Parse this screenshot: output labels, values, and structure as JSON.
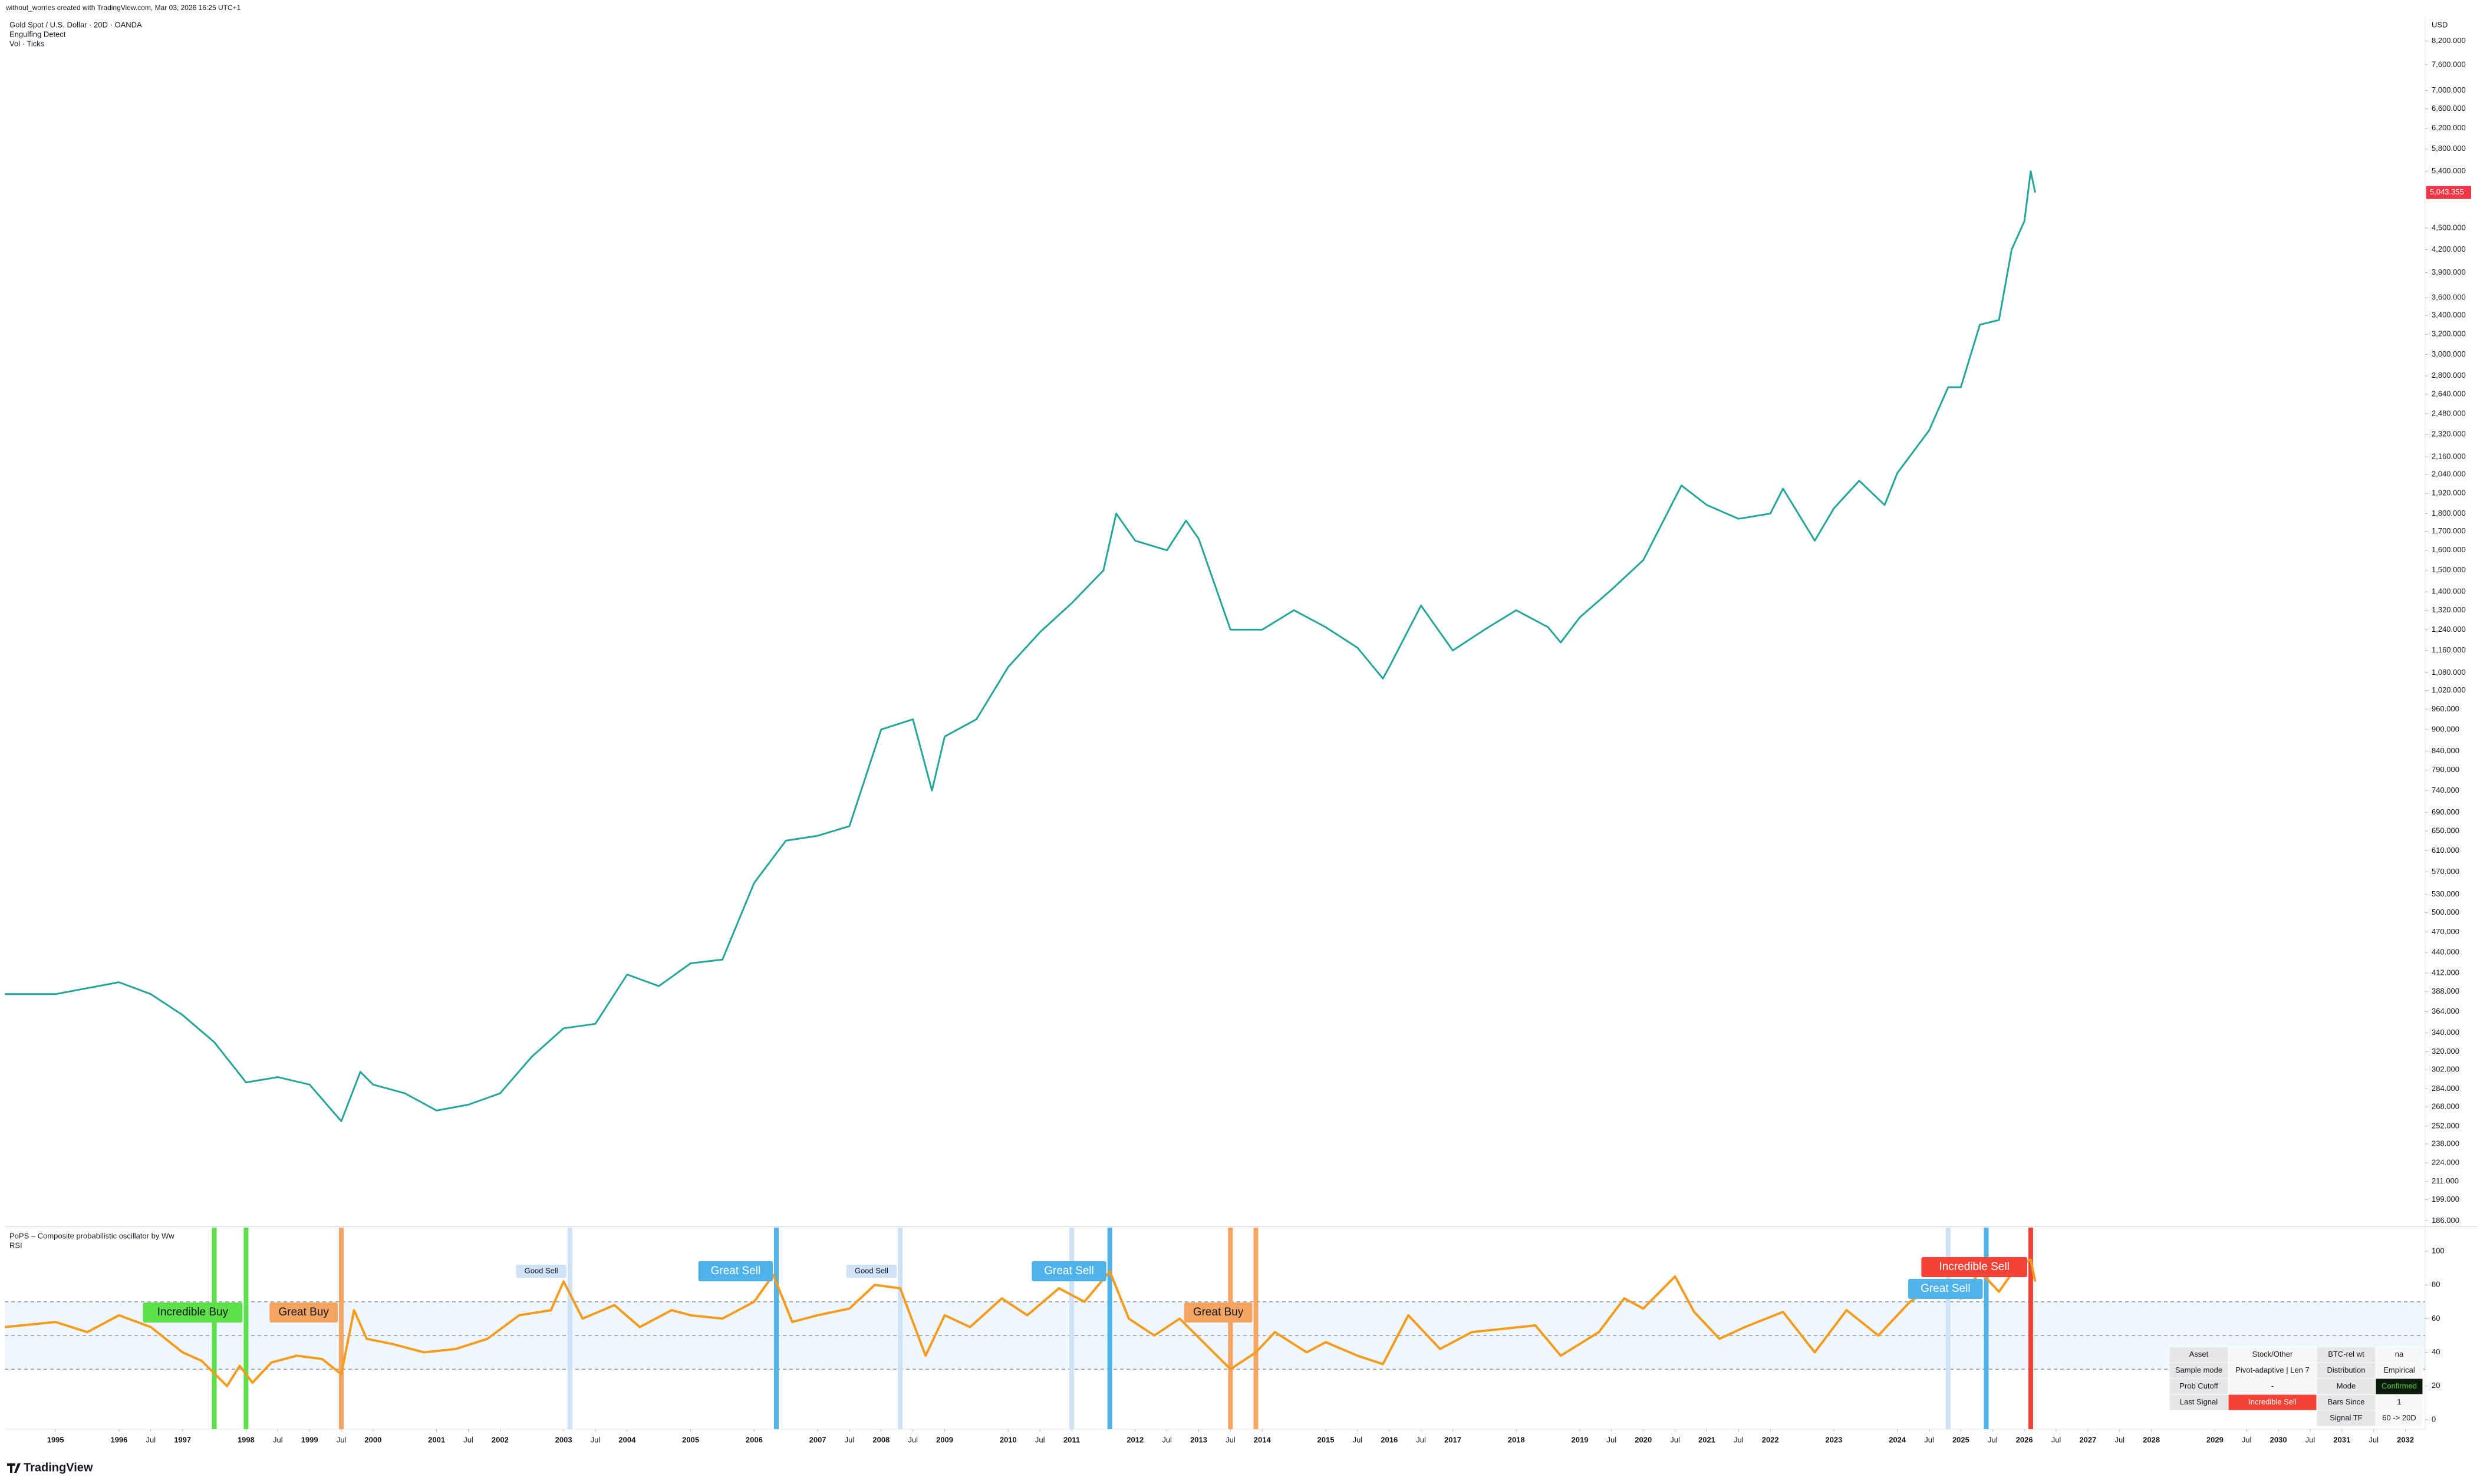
{
  "header": "without_worries created with TradingView.com, Mar 03, 2026 16:25 UTC+1",
  "footer": "TradingView",
  "chart_data": [
    {
      "type": "line",
      "log_scale": true,
      "currency": "USD",
      "legend_extra": [
        "Engulfing Detect",
        "Vol · Ticks"
      ],
      "last_price_label": "5,043.355",
      "xlim": [
        1994.2,
        2032.31
      ],
      "ylim": [
        183,
        8890
      ],
      "x": [
        1994.2,
        1995,
        1996,
        1996.5,
        1997,
        1997.5,
        1998,
        1998.5,
        1999,
        1999.5,
        1999.8,
        2000,
        2000.5,
        2001,
        2001.5,
        2002,
        2002.5,
        2003,
        2003.5,
        2004,
        2004.5,
        2005,
        2005.5,
        2006,
        2006.5,
        2007,
        2007.5,
        2008,
        2008.5,
        2008.8,
        2009,
        2009.5,
        2010,
        2010.5,
        2011,
        2011.5,
        2011.7,
        2012,
        2012.5,
        2012.8,
        2013,
        2013.5,
        2014,
        2014.5,
        2015,
        2015.5,
        2015.9,
        2016,
        2016.5,
        2017,
        2017.5,
        2018,
        2018.5,
        2018.7,
        2019,
        2019.5,
        2020,
        2020.6,
        2021,
        2021.5,
        2022,
        2022.2,
        2022.7,
        2023,
        2023.4,
        2023.8,
        2024,
        2024.5,
        2024.8,
        2025,
        2025.3,
        2025.6,
        2025.8,
        2026,
        2026.1,
        2026.17
      ],
      "series": [
        {
          "name": "Gold Spot / U.S. Dollar · 20D · OANDA",
          "color": "#26a69a",
          "values": [
            385,
            385,
            400,
            385,
            360,
            330,
            290,
            295,
            288,
            256,
            300,
            288,
            280,
            265,
            270,
            280,
            315,
            345,
            350,
            410,
            395,
            425,
            430,
            550,
            630,
            640,
            660,
            900,
            930,
            740,
            880,
            930,
            1100,
            1230,
            1350,
            1500,
            1800,
            1650,
            1600,
            1760,
            1660,
            1240,
            1240,
            1320,
            1250,
            1170,
            1060,
            1100,
            1340,
            1160,
            1240,
            1320,
            1250,
            1190,
            1290,
            1410,
            1550,
            1970,
            1850,
            1770,
            1800,
            1950,
            1650,
            1830,
            2000,
            1850,
            2050,
            2350,
            2700,
            2700,
            3300,
            3350,
            4200,
            4600,
            5400,
            5043.355
          ]
        }
      ],
      "yticks": [
        {
          "value": 8200,
          "label": "8,200.000"
        },
        {
          "value": 7600,
          "label": "7,600.000"
        },
        {
          "value": 7000,
          "label": "7,000.000"
        },
        {
          "value": 6600,
          "label": "6,600.000"
        },
        {
          "value": 6200,
          "label": "6,200.000"
        },
        {
          "value": 5800,
          "label": "5,800.000"
        },
        {
          "value": 5400,
          "label": "5,400.000"
        },
        {
          "value": 4500,
          "label": "4,500.000"
        },
        {
          "value": 4200,
          "label": "4,200.000"
        },
        {
          "value": 3900,
          "label": "3,900.000"
        },
        {
          "value": 3600,
          "label": "3,600.000"
        },
        {
          "value": 3400,
          "label": "3,400.000"
        },
        {
          "value": 3200,
          "label": "3,200.000"
        },
        {
          "value": 3000,
          "label": "3,000.000"
        },
        {
          "value": 2800,
          "label": "2,800.000"
        },
        {
          "value": 2640,
          "label": "2,640.000"
        },
        {
          "value": 2480,
          "label": "2,480.000"
        },
        {
          "value": 2320,
          "label": "2,320.000"
        },
        {
          "value": 2160,
          "label": "2,160.000"
        },
        {
          "value": 2040,
          "label": "2,040.000"
        },
        {
          "value": 1920,
          "label": "1,920.000"
        },
        {
          "value": 1800,
          "label": "1,800.000"
        },
        {
          "value": 1700,
          "label": "1,700.000"
        },
        {
          "value": 1600,
          "label": "1,600.000"
        },
        {
          "value": 1500,
          "label": "1,500.000"
        },
        {
          "value": 1400,
          "label": "1,400.000"
        },
        {
          "value": 1320,
          "label": "1,320.000"
        },
        {
          "value": 1240,
          "label": "1,240.000"
        },
        {
          "value": 1160,
          "label": "1,160.000"
        },
        {
          "value": 1080,
          "label": "1,080.000"
        },
        {
          "value": 1020,
          "label": "1,020.000"
        },
        {
          "value": 960,
          "label": "960.000"
        },
        {
          "value": 900,
          "label": "900.000"
        },
        {
          "value": 840,
          "label": "840.000"
        },
        {
          "value": 790,
          "label": "790.000"
        },
        {
          "value": 740,
          "label": "740.000"
        },
        {
          "value": 690,
          "label": "690.000"
        },
        {
          "value": 650,
          "label": "650.000"
        },
        {
          "value": 610,
          "label": "610.000"
        },
        {
          "value": 570,
          "label": "570.000"
        },
        {
          "value": 530,
          "label": "530.000"
        },
        {
          "value": 500,
          "label": "500.000"
        },
        {
          "value": 470,
          "label": "470.000"
        },
        {
          "value": 440,
          "label": "440.000"
        },
        {
          "value": 412,
          "label": "412.000"
        },
        {
          "value": 388,
          "label": "388.000"
        },
        {
          "value": 364,
          "label": "364.000"
        },
        {
          "value": 340,
          "label": "340.000"
        },
        {
          "value": 320,
          "label": "320.000"
        },
        {
          "value": 302,
          "label": "302.000"
        },
        {
          "value": 284,
          "label": "284.000"
        },
        {
          "value": 268,
          "label": "268.000"
        },
        {
          "value": 252,
          "label": "252.000"
        },
        {
          "value": 238,
          "label": "238.000"
        },
        {
          "value": 224,
          "label": "224.000"
        },
        {
          "value": 211,
          "label": "211.000"
        },
        {
          "value": 199,
          "label": "199.000"
        },
        {
          "value": 186,
          "label": "186.000"
        }
      ],
      "xticks": [
        1995,
        1996,
        {
          "value": 1996.5,
          "label": "Jul"
        },
        1997,
        1998,
        {
          "value": 1998.5,
          "label": "Jul"
        },
        1999,
        {
          "value": 1999.5,
          "label": "Jul"
        },
        2000,
        2001,
        {
          "value": 2001.5,
          "label": "Jul"
        },
        2002,
        2003,
        {
          "value": 2003.5,
          "label": "Jul"
        },
        2004,
        2005,
        2006,
        2007,
        {
          "value": 2007.5,
          "label": "Jul"
        },
        2008,
        {
          "value": 2008.5,
          "label": "Jul"
        },
        2009,
        2010,
        {
          "value": 2010.5,
          "label": "Jul"
        },
        2011,
        2012,
        {
          "value": 2012.5,
          "label": "Jul"
        },
        2013,
        {
          "value": 2013.5,
          "label": "Jul"
        },
        2014,
        2015,
        {
          "value": 2015.5,
          "label": "Jul"
        },
        2016,
        {
          "value": 2016.5,
          "label": "Jul"
        },
        2017,
        2018,
        2019,
        {
          "value": 2019.5,
          "label": "Jul"
        },
        2020,
        {
          "value": 2020.5,
          "label": "Jul"
        },
        2021,
        {
          "value": 2021.5,
          "label": "Jul"
        },
        2022,
        2023,
        2024,
        {
          "value": 2024.5,
          "label": "Jul"
        },
        2025,
        {
          "value": 2025.5,
          "label": "Jul"
        },
        2026,
        {
          "value": 2026.5,
          "label": "Jul"
        },
        2027,
        {
          "value": 2027.5,
          "label": "Jul"
        },
        2028,
        2029,
        {
          "value": 2029.5,
          "label": "Jul"
        },
        2030,
        {
          "value": 2030.5,
          "label": "Jul"
        },
        2031,
        {
          "value": 2031.5,
          "label": "Jul"
        },
        2032
      ]
    },
    {
      "type": "line",
      "title": "PoPS – Composite probabilistic oscillator by Ww",
      "xlim": [
        1994.2,
        2032.31
      ],
      "ylim": [
        -5.6,
        114
      ],
      "yticks": [
        0,
        20,
        40,
        60,
        80,
        100
      ],
      "band": [
        30,
        70
      ],
      "midline": 50,
      "x": [
        1994.2,
        1995,
        1995.5,
        1996,
        1996.5,
        1997,
        1997.3,
        1997.7,
        1997.9,
        1998.1,
        1998.4,
        1998.8,
        1999.2,
        1999.5,
        1999.7,
        1999.9,
        2000.3,
        2000.8,
        2001.3,
        2001.8,
        2002.3,
        2002.8,
        2003,
        2003.3,
        2003.8,
        2004.2,
        2004.7,
        2005,
        2005.5,
        2006,
        2006.3,
        2006.6,
        2007,
        2007.5,
        2007.9,
        2008.3,
        2008.7,
        2009,
        2009.4,
        2009.9,
        2010.3,
        2010.8,
        2011.2,
        2011.6,
        2011.9,
        2012.3,
        2012.7,
        2013.1,
        2013.5,
        2013.9,
        2014.2,
        2014.7,
        2015,
        2015.5,
        2015.9,
        2016.3,
        2016.8,
        2017.3,
        2017.8,
        2018.3,
        2018.7,
        2019.3,
        2019.7,
        2020,
        2020.5,
        2020.8,
        2021.2,
        2021.6,
        2022.2,
        2022.7,
        2023.2,
        2023.7,
        2024.2,
        2024.6,
        2025,
        2025.3,
        2025.6,
        2025.9,
        2026.1,
        2026.17
      ],
      "series": [
        {
          "name": "RSI",
          "color": "#f39c1f",
          "values": [
            55,
            58,
            52,
            62,
            55,
            40,
            35,
            20,
            32,
            22,
            34,
            38,
            36,
            27,
            65,
            48,
            45,
            40,
            42,
            48,
            62,
            65,
            82,
            60,
            68,
            55,
            65,
            62,
            60,
            70,
            86,
            58,
            62,
            66,
            80,
            78,
            38,
            62,
            55,
            72,
            62,
            78,
            70,
            88,
            60,
            50,
            60,
            45,
            30,
            40,
            52,
            40,
            46,
            38,
            33,
            62,
            42,
            52,
            54,
            56,
            38,
            52,
            72,
            66,
            85,
            64,
            48,
            55,
            64,
            40,
            65,
            50,
            70,
            80,
            72,
            88,
            76,
            92,
            95,
            82
          ]
        }
      ],
      "signals": [
        {
          "x": 1997.5,
          "color": "#5ee04a"
        },
        {
          "x": 1998.0,
          "color": "#5ee04a",
          "label": "Incredible Buy",
          "text_color": "#131722"
        },
        {
          "x": 1999.5,
          "color": "#f5a462",
          "label": "Great Buy",
          "text_color": "#131722"
        },
        {
          "x": 2003.1,
          "color": "#cfe2f7",
          "label": "Good Sell",
          "text_color": "#131722"
        },
        {
          "x": 2006.35,
          "color": "#4fb3ea",
          "label": "Great Sell",
          "text_color": "#ffffff"
        },
        {
          "x": 2008.3,
          "color": "#cfe2f7",
          "label": "Good Sell",
          "text_color": "#131722"
        },
        {
          "x": 2011.0,
          "color": "#cfe2f7"
        },
        {
          "x": 2011.6,
          "color": "#4fb3ea",
          "label": "Great Sell",
          "text_color": "#ffffff"
        },
        {
          "x": 2013.5,
          "color": "#f5a462"
        },
        {
          "x": 2013.9,
          "color": "#f5a462",
          "label": "Great Buy",
          "text_color": "#131722"
        },
        {
          "x": 2024.8,
          "color": "#cfe2f7"
        },
        {
          "x": 2025.4,
          "color": "#4fb3ea",
          "label": "Great Sell",
          "text_color": "#ffffff"
        },
        {
          "x": 2026.1,
          "color": "#f44336",
          "label": "Incredible Sell",
          "text_color": "#ffffff"
        }
      ]
    }
  ],
  "table": {
    "left": [
      [
        "Asset",
        "Stock/Other"
      ],
      [
        "Sample mode",
        "Pivot-adaptive | Len 7"
      ],
      [
        "Prob Cutoff",
        "-"
      ],
      [
        "Last Signal",
        "Incredible Sell"
      ]
    ],
    "right": [
      [
        "BTC-rel wt",
        "na"
      ],
      [
        "Distribution",
        "Empirical"
      ],
      [
        "Mode",
        "Confirmed"
      ],
      [
        "Bars Since",
        1
      ],
      [
        "Signal TF",
        "60 -> 20D"
      ]
    ]
  }
}
